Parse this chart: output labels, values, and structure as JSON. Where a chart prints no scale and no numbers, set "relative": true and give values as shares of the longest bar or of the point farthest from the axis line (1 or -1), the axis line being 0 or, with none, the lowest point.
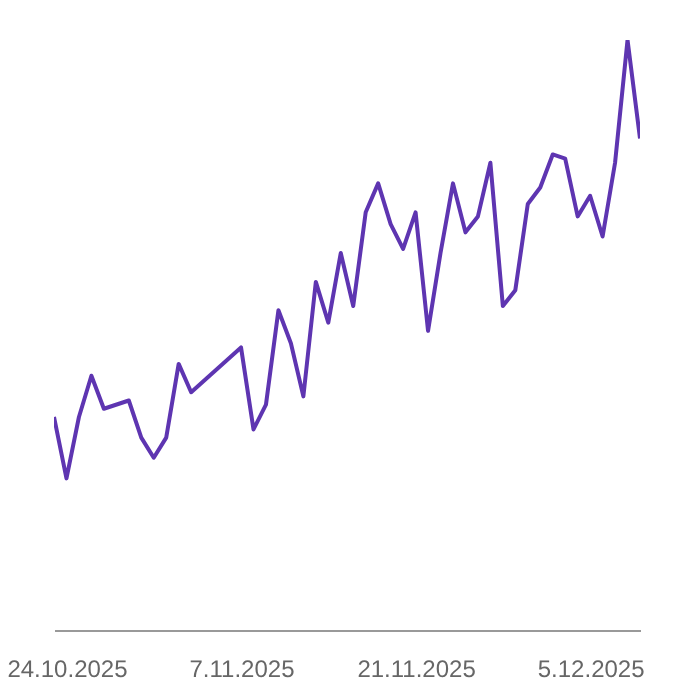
{
  "chart_data": {
    "type": "line",
    "relative": true,
    "x": [
      "2025-10-23",
      "2025-10-24",
      "2025-10-25",
      "2025-10-26",
      "2025-10-27",
      "2025-10-29",
      "2025-10-30",
      "2025-10-31",
      "2025-11-01",
      "2025-11-02",
      "2025-11-03",
      "2025-11-07",
      "2025-11-08",
      "2025-11-09",
      "2025-11-10",
      "2025-11-11",
      "2025-11-12",
      "2025-11-13",
      "2025-11-14",
      "2025-11-15",
      "2025-11-16",
      "2025-11-17",
      "2025-11-18",
      "2025-11-19",
      "2025-11-20",
      "2025-11-21",
      "2025-11-22",
      "2025-11-23",
      "2025-11-24",
      "2025-11-25",
      "2025-11-26",
      "2025-11-27",
      "2025-11-28",
      "2025-11-29",
      "2025-11-30",
      "2025-12-01",
      "2025-12-02",
      "2025-12-03",
      "2025-12-04",
      "2025-12-05",
      "2025-12-06",
      "2025-12-07",
      "2025-12-08",
      "2025-12-09"
    ],
    "series": [
      {
        "color": "#5e35b1",
        "values": [
          0.361,
          0.257,
          0.361,
          0.431,
          0.375,
          0.389,
          0.326,
          0.292,
          0.326,
          0.451,
          0.403,
          0.479,
          0.34,
          0.382,
          0.542,
          0.486,
          0.396,
          0.59,
          0.521,
          0.639,
          0.549,
          0.708,
          0.757,
          0.688,
          0.646,
          0.708,
          0.507,
          0.639,
          0.757,
          0.674,
          0.701,
          0.792,
          0.549,
          0.576,
          0.722,
          0.75,
          0.806,
          0.799,
          0.701,
          0.736,
          0.667,
          0.792,
          1,
          0.833
        ]
      }
    ],
    "xlim": [
      "2025-10-23",
      "2025-12-09"
    ],
    "xticks": [
      {
        "value": "2025-10-24",
        "label": "24.10.2025"
      },
      {
        "value": "2025-11-07",
        "label": "7.11.2025"
      },
      {
        "value": "2025-11-21",
        "label": "21.11.2025"
      },
      {
        "value": "2025-12-05",
        "label": "5.12.2025"
      }
    ]
  }
}
